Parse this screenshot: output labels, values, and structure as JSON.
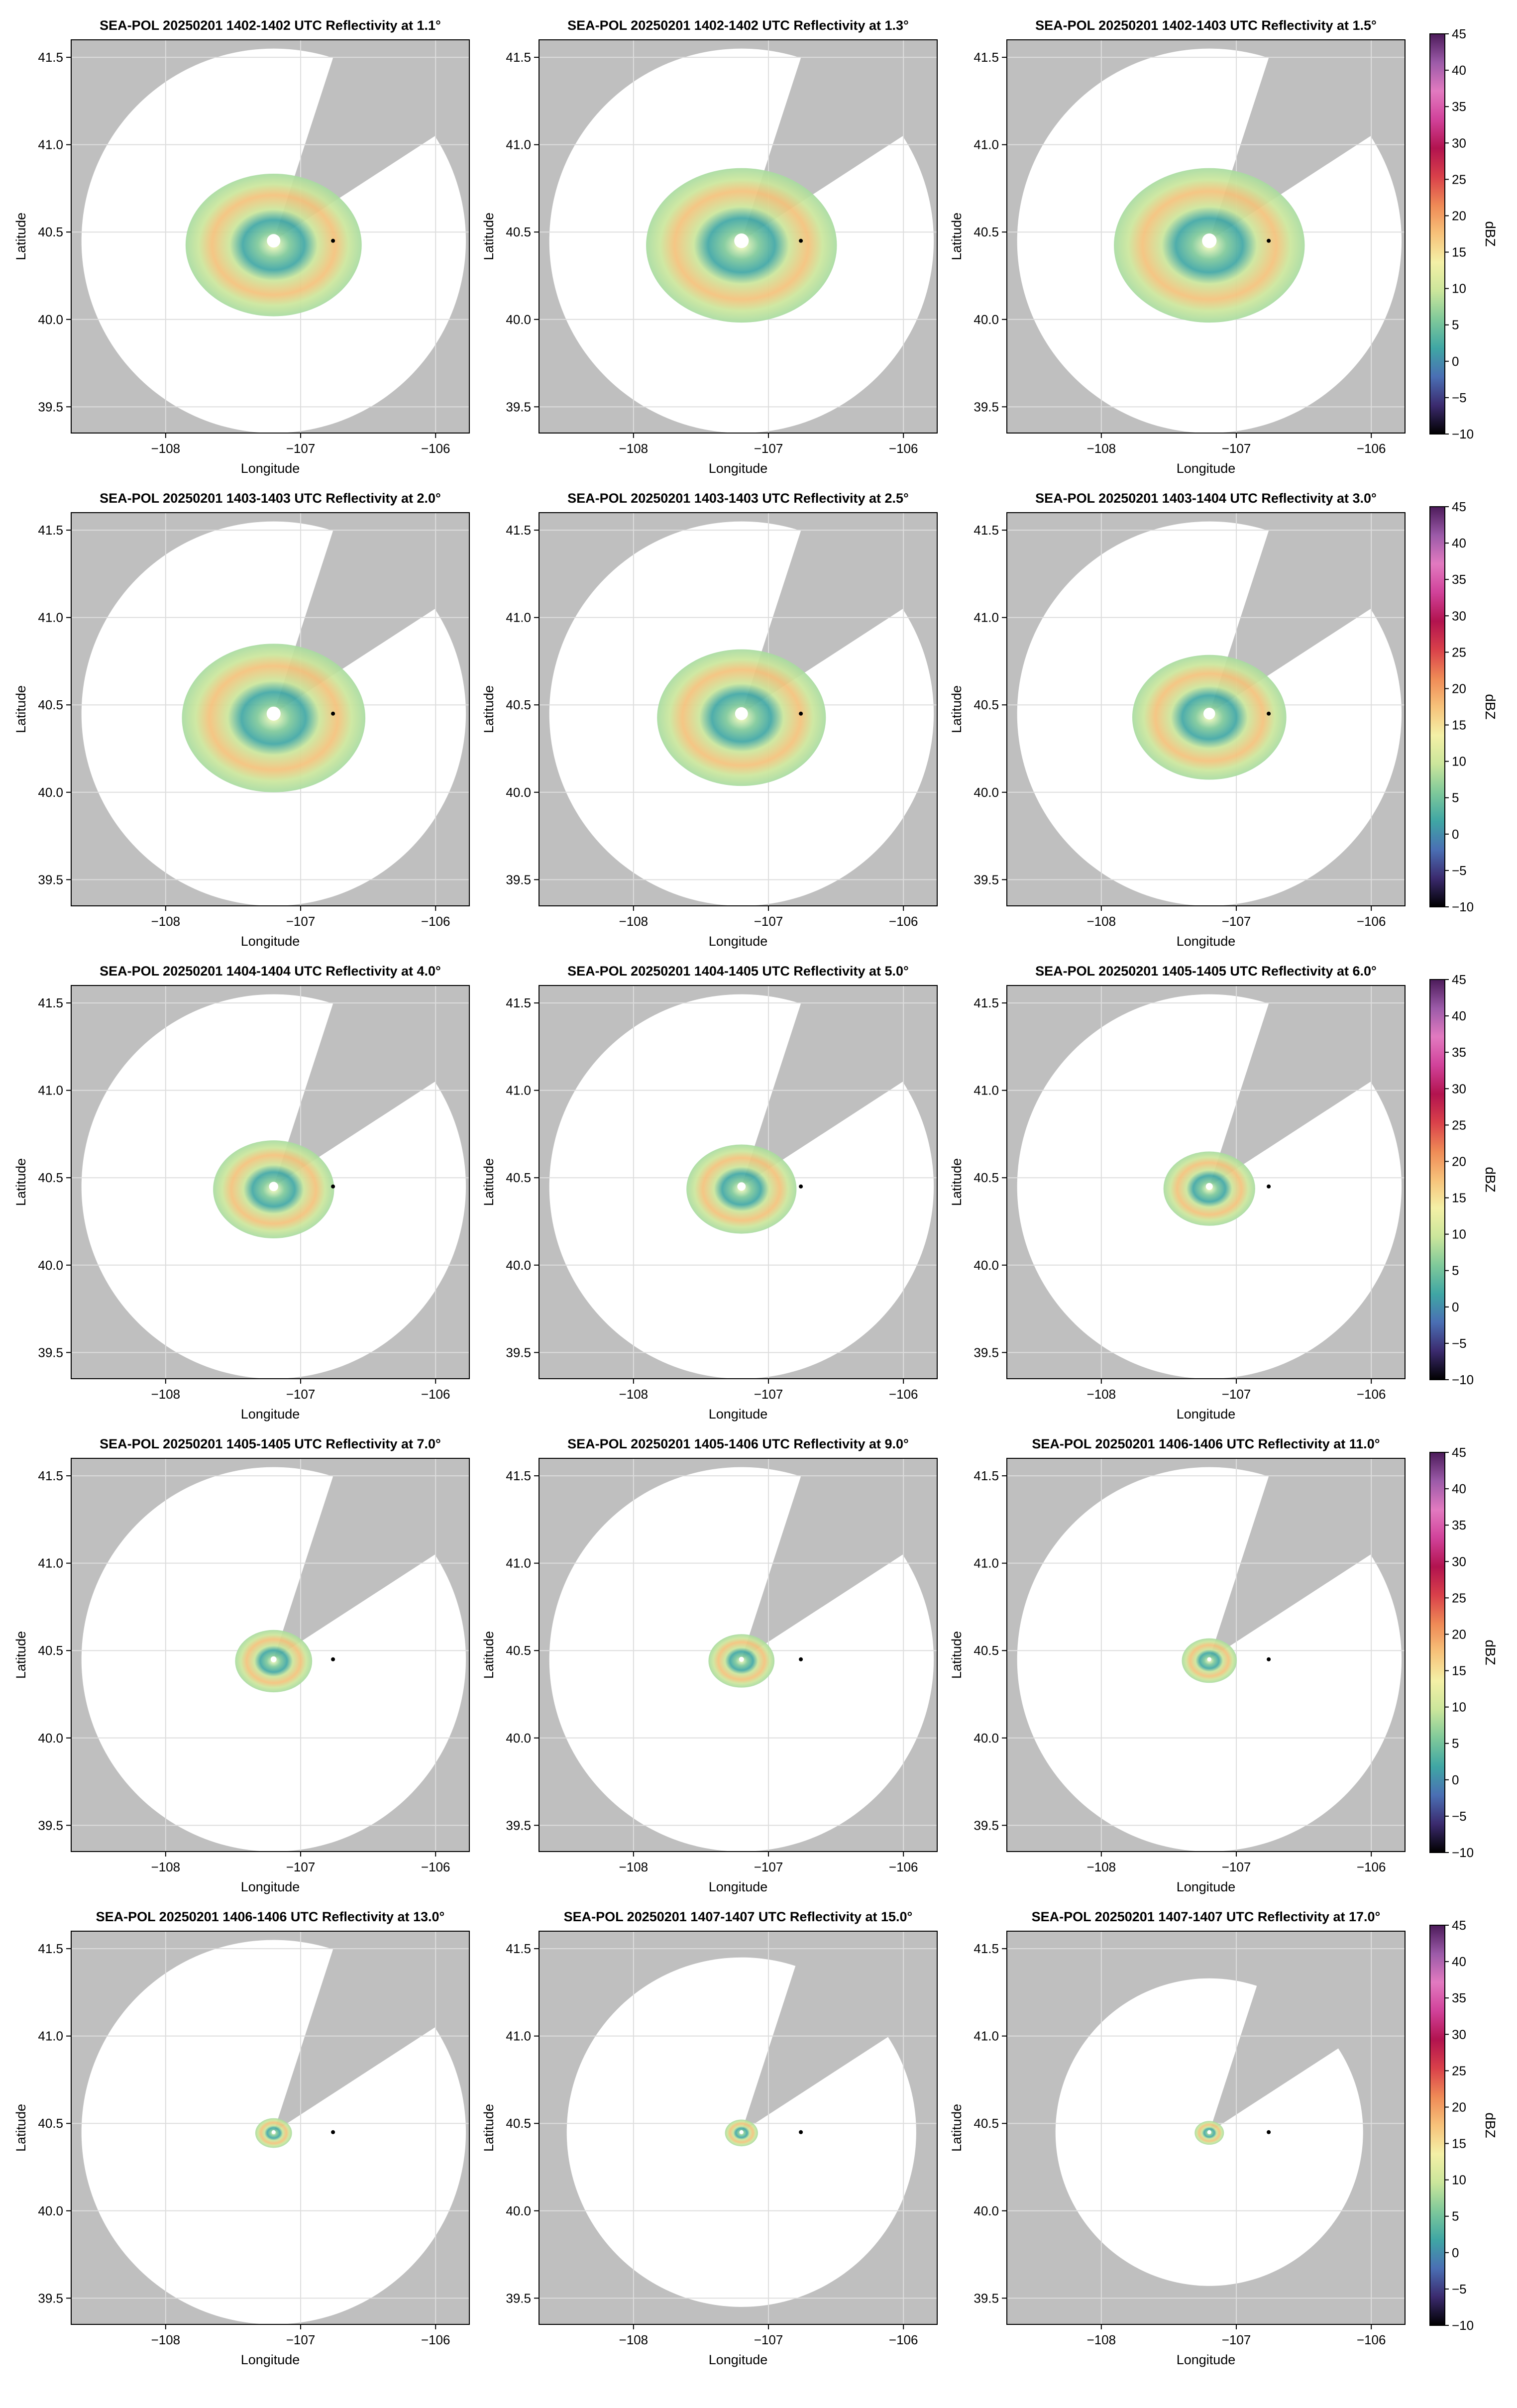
{
  "figure": {
    "rows": 5,
    "cols": 3,
    "colorbar": {
      "label": "dBZ",
      "range": [
        -10,
        45
      ],
      "ticks": [
        "45",
        "40",
        "35",
        "30",
        "25",
        "20",
        "15",
        "10",
        "5",
        "0",
        "−5",
        "−10"
      ],
      "colors": [
        "#000000",
        "#3b2a6e",
        "#4a6fb4",
        "#3fa6a4",
        "#7fc99a",
        "#cbe69b",
        "#f4f0a6",
        "#f7c27a",
        "#ef8a56",
        "#d9404a",
        "#b2134f",
        "#d1429a",
        "#e27ac0",
        "#9b5aa8",
        "#4c1b5a"
      ]
    },
    "colors": {
      "unsampled": "#bfbfbf",
      "sampled": "#ffffff",
      "gridline": "#dddddd",
      "marker": "#000000"
    }
  },
  "chart_data": [
    {
      "type": "heatmap",
      "title": "SEA-POL 20250201 1402-1402 UTC Reflectivity at 1.1°",
      "xlabel": "Longitude",
      "ylabel": "Latitude",
      "xticks": [
        "−108",
        "−107",
        "−106"
      ],
      "yticks": [
        "41.5",
        "41.0",
        "40.5",
        "40.0",
        "39.5"
      ],
      "xlim": [
        -108.7,
        -105.75
      ],
      "ylim": [
        39.35,
        41.6
      ],
      "radar_lon": -107.2,
      "radar_lat": 40.45,
      "range_extent_lat": 1.1,
      "echo_extent_lat": 0.48,
      "marker": {
        "lon": -106.76,
        "lat": 40.45
      }
    },
    {
      "type": "heatmap",
      "title": "SEA-POL 20250201 1402-1402 UTC Reflectivity at 1.3°",
      "xlabel": "Longitude",
      "ylabel": "Latitude",
      "xticks": [
        "−108",
        "−107",
        "−106"
      ],
      "yticks": [
        "41.5",
        "41.0",
        "40.5",
        "40.0",
        "39.5"
      ],
      "xlim": [
        -108.7,
        -105.75
      ],
      "ylim": [
        39.35,
        41.6
      ],
      "radar_lon": -107.2,
      "radar_lat": 40.45,
      "range_extent_lat": 1.1,
      "echo_extent_lat": 0.52,
      "marker": {
        "lon": -106.76,
        "lat": 40.45
      }
    },
    {
      "type": "heatmap",
      "title": "SEA-POL 20250201 1402-1403 UTC Reflectivity at 1.5°",
      "xlabel": "Longitude",
      "ylabel": "Latitude",
      "xticks": [
        "−108",
        "−107",
        "−106"
      ],
      "yticks": [
        "41.5",
        "41.0",
        "40.5",
        "40.0",
        "39.5"
      ],
      "xlim": [
        -108.7,
        -105.75
      ],
      "ylim": [
        39.35,
        41.6
      ],
      "radar_lon": -107.2,
      "radar_lat": 40.45,
      "range_extent_lat": 1.1,
      "echo_extent_lat": 0.52,
      "marker": {
        "lon": -106.76,
        "lat": 40.45
      }
    },
    {
      "type": "heatmap",
      "title": "SEA-POL 20250201 1403-1403 UTC Reflectivity at 2.0°",
      "xlabel": "Longitude",
      "ylabel": "Latitude",
      "xticks": [
        "−108",
        "−107",
        "−106"
      ],
      "yticks": [
        "41.5",
        "41.0",
        "40.5",
        "40.0",
        "39.5"
      ],
      "xlim": [
        -108.7,
        -105.75
      ],
      "ylim": [
        39.35,
        41.6
      ],
      "radar_lon": -107.2,
      "radar_lat": 40.45,
      "range_extent_lat": 1.1,
      "echo_extent_lat": 0.5,
      "marker": {
        "lon": -106.76,
        "lat": 40.45
      }
    },
    {
      "type": "heatmap",
      "title": "SEA-POL 20250201 1403-1403 UTC Reflectivity at 2.5°",
      "xlabel": "Longitude",
      "ylabel": "Latitude",
      "xticks": [
        "−108",
        "−107",
        "−106"
      ],
      "yticks": [
        "41.5",
        "41.0",
        "40.5",
        "40.0",
        "39.5"
      ],
      "xlim": [
        -108.7,
        -105.75
      ],
      "ylim": [
        39.35,
        41.6
      ],
      "radar_lon": -107.2,
      "radar_lat": 40.45,
      "range_extent_lat": 1.1,
      "echo_extent_lat": 0.46,
      "marker": {
        "lon": -106.76,
        "lat": 40.45
      }
    },
    {
      "type": "heatmap",
      "title": "SEA-POL 20250201 1403-1404 UTC Reflectivity at 3.0°",
      "xlabel": "Longitude",
      "ylabel": "Latitude",
      "xticks": [
        "−108",
        "−107",
        "−106"
      ],
      "yticks": [
        "41.5",
        "41.0",
        "40.5",
        "40.0",
        "39.5"
      ],
      "xlim": [
        -108.7,
        -105.75
      ],
      "ylim": [
        39.35,
        41.6
      ],
      "radar_lon": -107.2,
      "radar_lat": 40.45,
      "range_extent_lat": 1.1,
      "echo_extent_lat": 0.42,
      "marker": {
        "lon": -106.76,
        "lat": 40.45
      }
    },
    {
      "type": "heatmap",
      "title": "SEA-POL 20250201 1404-1404 UTC Reflectivity at 4.0°",
      "xlabel": "Longitude",
      "ylabel": "Latitude",
      "xticks": [
        "−108",
        "−107",
        "−106"
      ],
      "yticks": [
        "41.5",
        "41.0",
        "40.5",
        "40.0",
        "39.5"
      ],
      "xlim": [
        -108.7,
        -105.75
      ],
      "ylim": [
        39.35,
        41.6
      ],
      "radar_lon": -107.2,
      "radar_lat": 40.45,
      "range_extent_lat": 1.1,
      "echo_extent_lat": 0.33,
      "marker": {
        "lon": -106.76,
        "lat": 40.45
      }
    },
    {
      "type": "heatmap",
      "title": "SEA-POL 20250201 1404-1405 UTC Reflectivity at 5.0°",
      "xlabel": "Longitude",
      "ylabel": "Latitude",
      "xticks": [
        "−108",
        "−107",
        "−106"
      ],
      "yticks": [
        "41.5",
        "41.0",
        "40.5",
        "40.0",
        "39.5"
      ],
      "xlim": [
        -108.7,
        -105.75
      ],
      "ylim": [
        39.35,
        41.6
      ],
      "radar_lon": -107.2,
      "radar_lat": 40.45,
      "range_extent_lat": 1.1,
      "echo_extent_lat": 0.3,
      "marker": {
        "lon": -106.76,
        "lat": 40.45
      }
    },
    {
      "type": "heatmap",
      "title": "SEA-POL 20250201 1405-1405 UTC Reflectivity at 6.0°",
      "xlabel": "Longitude",
      "ylabel": "Latitude",
      "xticks": [
        "−108",
        "−107",
        "−106"
      ],
      "yticks": [
        "41.5",
        "41.0",
        "40.5",
        "40.0",
        "39.5"
      ],
      "xlim": [
        -108.7,
        -105.75
      ],
      "ylim": [
        39.35,
        41.6
      ],
      "radar_lon": -107.2,
      "radar_lat": 40.45,
      "range_extent_lat": 1.1,
      "echo_extent_lat": 0.25,
      "marker": {
        "lon": -106.76,
        "lat": 40.45
      }
    },
    {
      "type": "heatmap",
      "title": "SEA-POL 20250201 1405-1405 UTC Reflectivity at 7.0°",
      "xlabel": "Longitude",
      "ylabel": "Latitude",
      "xticks": [
        "−108",
        "−107",
        "−106"
      ],
      "yticks": [
        "41.5",
        "41.0",
        "40.5",
        "40.0",
        "39.5"
      ],
      "xlim": [
        -108.7,
        -105.75
      ],
      "ylim": [
        39.35,
        41.6
      ],
      "radar_lon": -107.2,
      "radar_lat": 40.45,
      "range_extent_lat": 1.1,
      "echo_extent_lat": 0.21,
      "marker": {
        "lon": -106.76,
        "lat": 40.45
      }
    },
    {
      "type": "heatmap",
      "title": "SEA-POL 20250201 1405-1406 UTC Reflectivity at 9.0°",
      "xlabel": "Longitude",
      "ylabel": "Latitude",
      "xticks": [
        "−108",
        "−107",
        "−106"
      ],
      "yticks": [
        "41.5",
        "41.0",
        "40.5",
        "40.0",
        "39.5"
      ],
      "xlim": [
        -108.7,
        -105.75
      ],
      "ylim": [
        39.35,
        41.6
      ],
      "radar_lon": -107.2,
      "radar_lat": 40.45,
      "range_extent_lat": 1.1,
      "echo_extent_lat": 0.18,
      "marker": {
        "lon": -106.76,
        "lat": 40.45
      }
    },
    {
      "type": "heatmap",
      "title": "SEA-POL 20250201 1406-1406 UTC Reflectivity at 11.0°",
      "xlabel": "Longitude",
      "ylabel": "Latitude",
      "xticks": [
        "−108",
        "−107",
        "−106"
      ],
      "yticks": [
        "41.5",
        "41.0",
        "40.5",
        "40.0",
        "39.5"
      ],
      "xlim": [
        -108.7,
        -105.75
      ],
      "ylim": [
        39.35,
        41.6
      ],
      "radar_lon": -107.2,
      "radar_lat": 40.45,
      "range_extent_lat": 1.1,
      "echo_extent_lat": 0.15,
      "marker": {
        "lon": -106.76,
        "lat": 40.45
      }
    },
    {
      "type": "heatmap",
      "title": "SEA-POL 20250201 1406-1406 UTC Reflectivity at 13.0°",
      "xlabel": "Longitude",
      "ylabel": "Latitude",
      "xticks": [
        "−108",
        "−107",
        "−106"
      ],
      "yticks": [
        "41.5",
        "41.0",
        "40.5",
        "40.0",
        "39.5"
      ],
      "xlim": [
        -108.7,
        -105.75
      ],
      "ylim": [
        39.35,
        41.6
      ],
      "radar_lon": -107.2,
      "radar_lat": 40.45,
      "range_extent_lat": 1.1,
      "echo_extent_lat": 0.1,
      "marker": {
        "lon": -106.76,
        "lat": 40.45
      }
    },
    {
      "type": "heatmap",
      "title": "SEA-POL 20250201 1407-1407 UTC Reflectivity at 15.0°",
      "xlabel": "Longitude",
      "ylabel": "Latitude",
      "xticks": [
        "−108",
        "−107",
        "−106"
      ],
      "yticks": [
        "41.5",
        "41.0",
        "40.5",
        "40.0",
        "39.5"
      ],
      "xlim": [
        -108.7,
        -105.75
      ],
      "ylim": [
        39.35,
        41.6
      ],
      "radar_lon": -107.2,
      "radar_lat": 40.45,
      "range_extent_lat": 1.0,
      "echo_extent_lat": 0.09,
      "marker": {
        "lon": -106.76,
        "lat": 40.45
      }
    },
    {
      "type": "heatmap",
      "title": "SEA-POL 20250201 1407-1407 UTC Reflectivity at 17.0°",
      "xlabel": "Longitude",
      "ylabel": "Latitude",
      "xticks": [
        "−108",
        "−107",
        "−106"
      ],
      "yticks": [
        "41.5",
        "41.0",
        "40.5",
        "40.0",
        "39.5"
      ],
      "xlim": [
        -108.7,
        -105.75
      ],
      "ylim": [
        39.35,
        41.6
      ],
      "radar_lon": -107.2,
      "radar_lat": 40.45,
      "range_extent_lat": 0.88,
      "echo_extent_lat": 0.08,
      "marker": {
        "lon": -106.76,
        "lat": 40.45
      }
    }
  ]
}
